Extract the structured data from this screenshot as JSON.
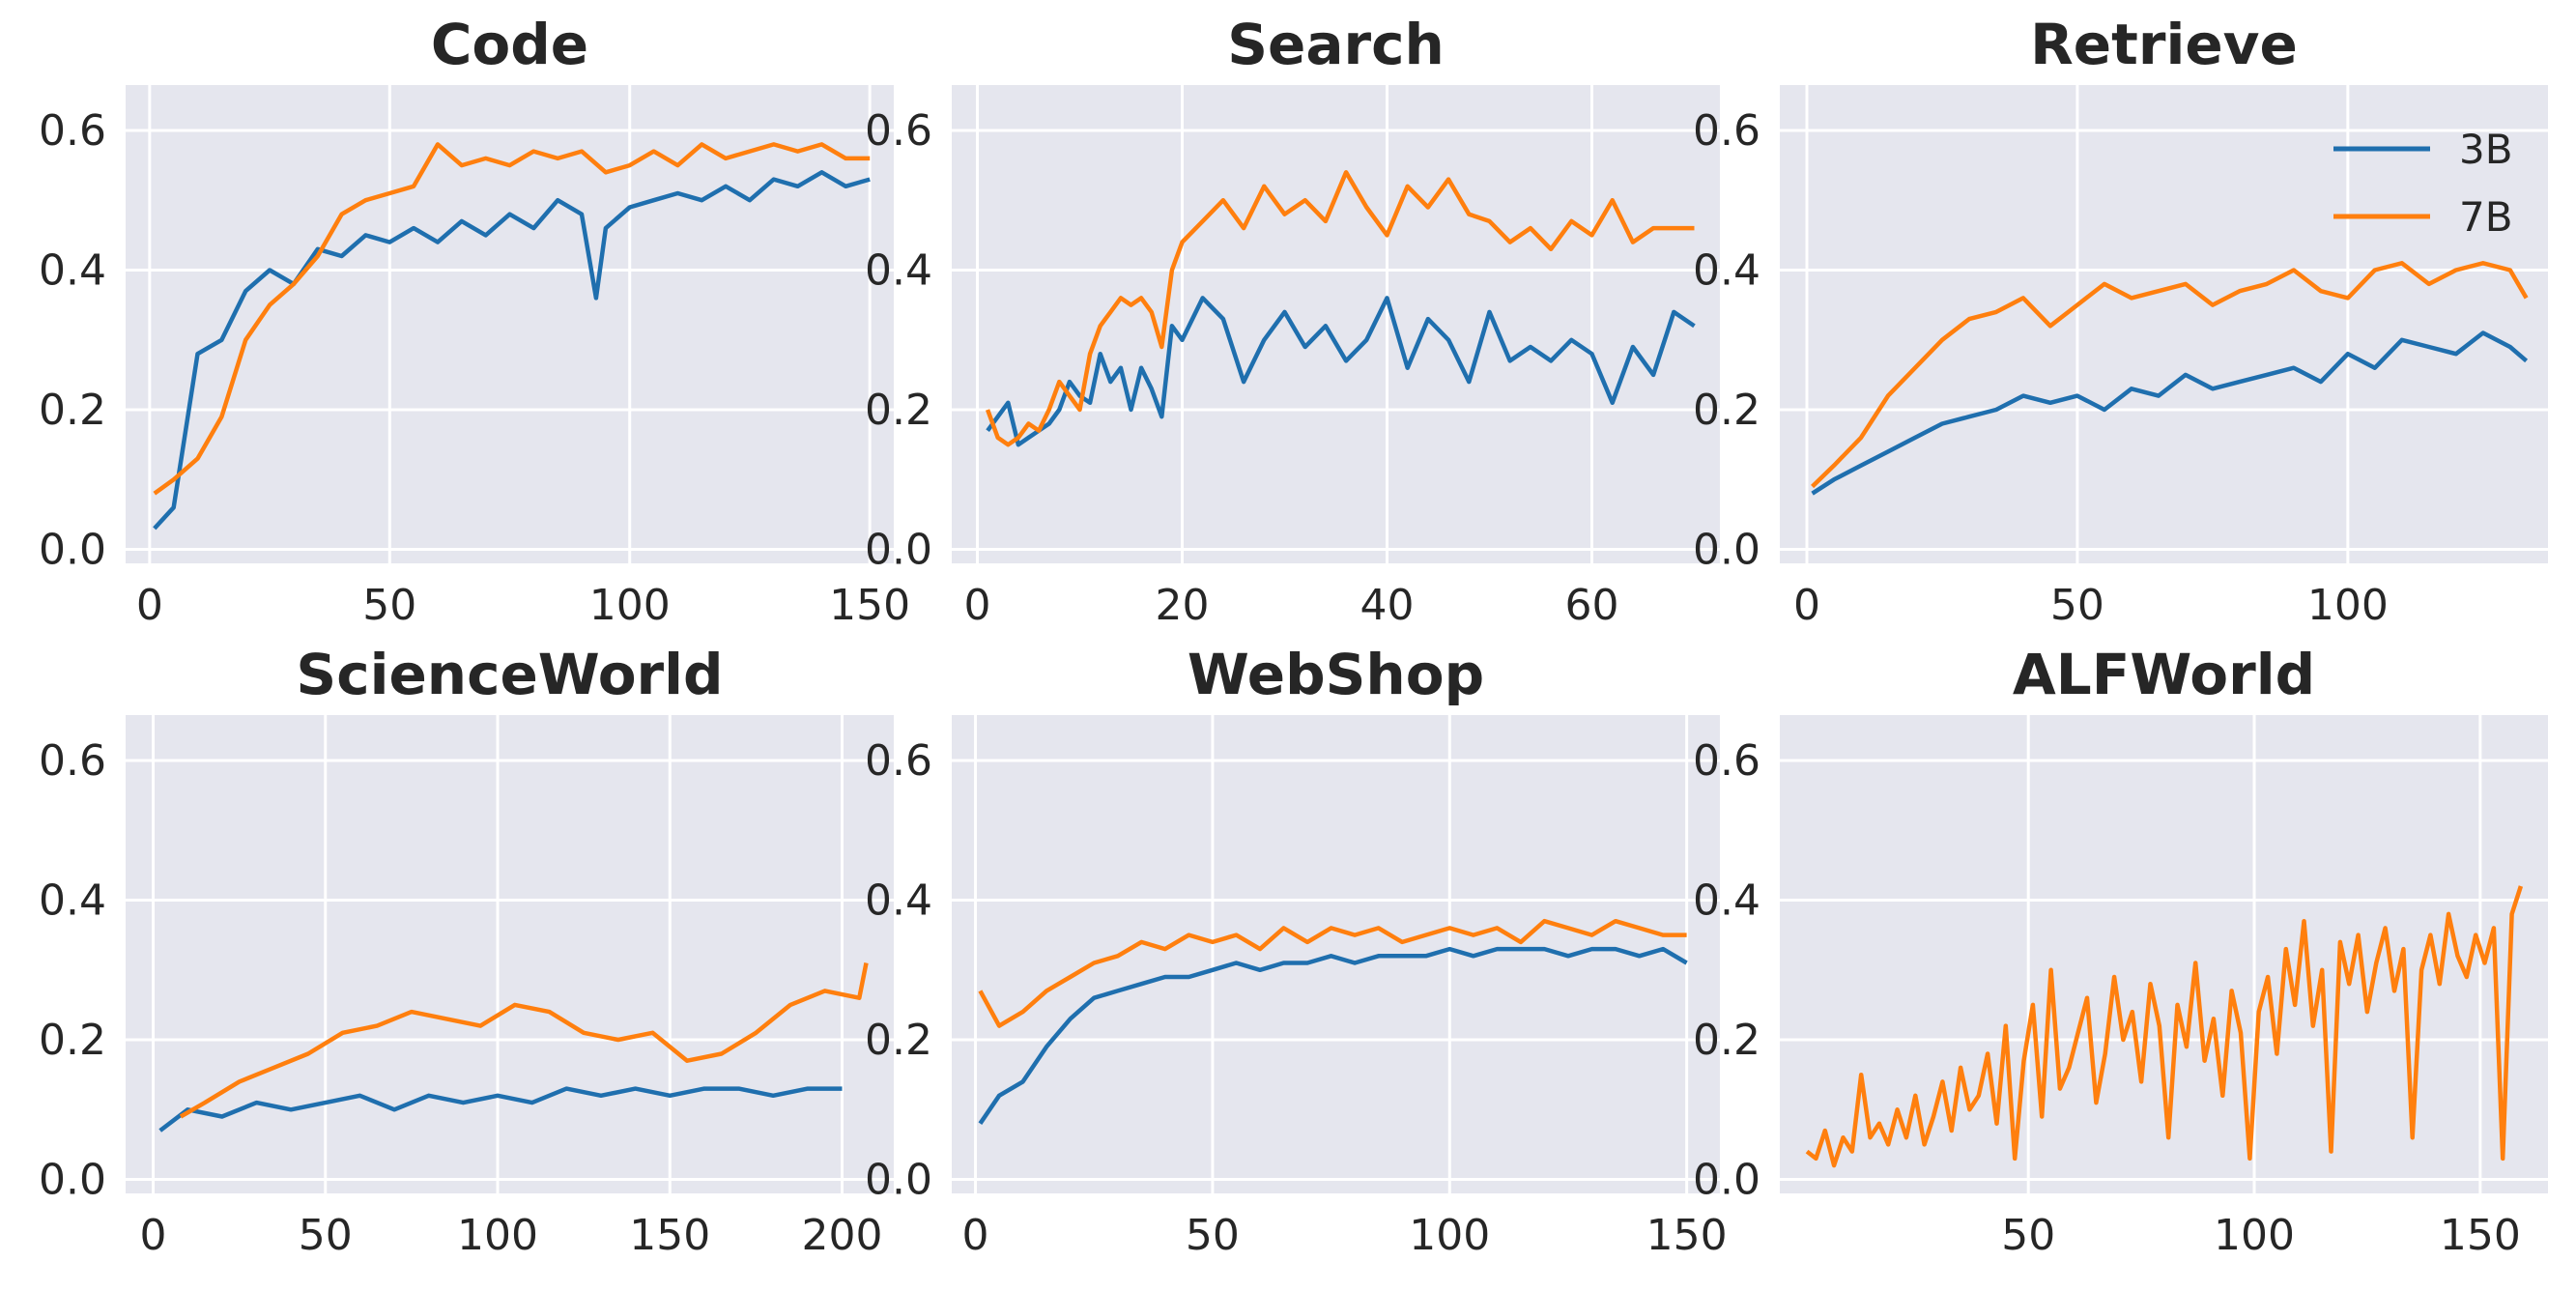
{
  "colors": {
    "series_3b": "#1f6fae",
    "series_7b": "#ff7f0e",
    "axes_bg": "#e5e6ee",
    "grid": "#ffffff"
  },
  "legend": {
    "placement": "top-right",
    "entries": [
      "3B",
      "7B"
    ]
  },
  "chart_data": [
    {
      "type": "line",
      "title": "Code",
      "grid": true,
      "xlim": [
        -5,
        155
      ],
      "ylim": [
        -0.02,
        0.665
      ],
      "xticks": [
        0,
        50,
        100,
        150
      ],
      "yticks": [
        0.0,
        0.2,
        0.4,
        0.6
      ],
      "series": [
        {
          "name": "3B",
          "x": [
            1,
            5,
            10,
            15,
            20,
            25,
            30,
            35,
            40,
            45,
            50,
            55,
            60,
            65,
            70,
            75,
            80,
            85,
            90,
            93,
            95,
            100,
            105,
            110,
            115,
            120,
            125,
            130,
            135,
            140,
            145,
            150
          ],
          "y": [
            0.03,
            0.06,
            0.28,
            0.3,
            0.37,
            0.4,
            0.38,
            0.43,
            0.42,
            0.45,
            0.44,
            0.46,
            0.44,
            0.47,
            0.45,
            0.48,
            0.46,
            0.5,
            0.48,
            0.36,
            0.46,
            0.49,
            0.5,
            0.51,
            0.5,
            0.52,
            0.5,
            0.53,
            0.52,
            0.54,
            0.52,
            0.53
          ]
        },
        {
          "name": "7B",
          "x": [
            1,
            5,
            10,
            15,
            20,
            25,
            30,
            35,
            40,
            45,
            50,
            55,
            60,
            65,
            70,
            75,
            80,
            85,
            90,
            95,
            100,
            105,
            110,
            115,
            120,
            125,
            130,
            135,
            140,
            145,
            150
          ],
          "y": [
            0.08,
            0.1,
            0.13,
            0.19,
            0.3,
            0.35,
            0.38,
            0.42,
            0.48,
            0.5,
            0.51,
            0.52,
            0.58,
            0.55,
            0.56,
            0.55,
            0.57,
            0.56,
            0.57,
            0.54,
            0.55,
            0.57,
            0.55,
            0.58,
            0.56,
            0.57,
            0.58,
            0.57,
            0.58,
            0.56,
            0.56
          ]
        }
      ]
    },
    {
      "type": "line",
      "title": "Search",
      "grid": true,
      "xlim": [
        -2.5,
        72.5
      ],
      "ylim": [
        -0.02,
        0.665
      ],
      "xticks": [
        0,
        20,
        40,
        60
      ],
      "yticks": [
        0.0,
        0.2,
        0.4,
        0.6
      ],
      "series": [
        {
          "name": "3B",
          "x": [
            1,
            2,
            3,
            4,
            5,
            6,
            7,
            8,
            9,
            10,
            11,
            12,
            13,
            14,
            15,
            16,
            17,
            18,
            19,
            20,
            22,
            24,
            26,
            28,
            30,
            32,
            34,
            36,
            38,
            40,
            42,
            44,
            46,
            48,
            50,
            52,
            54,
            56,
            58,
            60,
            62,
            64,
            66,
            68,
            70
          ],
          "y": [
            0.17,
            0.19,
            0.21,
            0.15,
            0.16,
            0.17,
            0.18,
            0.2,
            0.24,
            0.22,
            0.21,
            0.28,
            0.24,
            0.26,
            0.2,
            0.26,
            0.23,
            0.19,
            0.32,
            0.3,
            0.36,
            0.33,
            0.24,
            0.3,
            0.34,
            0.29,
            0.32,
            0.27,
            0.3,
            0.36,
            0.26,
            0.33,
            0.3,
            0.24,
            0.34,
            0.27,
            0.29,
            0.27,
            0.3,
            0.28,
            0.21,
            0.29,
            0.25,
            0.34,
            0.32
          ]
        },
        {
          "name": "7B",
          "x": [
            1,
            2,
            3,
            4,
            5,
            6,
            7,
            8,
            9,
            10,
            11,
            12,
            13,
            14,
            15,
            16,
            17,
            18,
            19,
            20,
            22,
            24,
            26,
            28,
            30,
            32,
            34,
            36,
            38,
            40,
            42,
            44,
            46,
            48,
            50,
            52,
            54,
            56,
            58,
            60,
            62,
            64,
            66,
            68,
            70
          ],
          "y": [
            0.2,
            0.16,
            0.15,
            0.16,
            0.18,
            0.17,
            0.2,
            0.24,
            0.22,
            0.2,
            0.28,
            0.32,
            0.34,
            0.36,
            0.35,
            0.36,
            0.34,
            0.29,
            0.4,
            0.44,
            0.47,
            0.5,
            0.46,
            0.52,
            0.48,
            0.5,
            0.47,
            0.54,
            0.49,
            0.45,
            0.52,
            0.49,
            0.53,
            0.48,
            0.47,
            0.44,
            0.46,
            0.43,
            0.47,
            0.45,
            0.5,
            0.44,
            0.46,
            0.46,
            0.46
          ]
        }
      ]
    },
    {
      "type": "line",
      "title": "Retrieve",
      "grid": true,
      "xlim": [
        -5,
        137
      ],
      "ylim": [
        -0.02,
        0.665
      ],
      "xticks": [
        0,
        50,
        100
      ],
      "yticks": [
        0.0,
        0.2,
        0.4,
        0.6
      ],
      "series": [
        {
          "name": "3B",
          "x": [
            1,
            5,
            10,
            15,
            20,
            25,
            30,
            35,
            40,
            45,
            50,
            55,
            60,
            65,
            70,
            75,
            80,
            85,
            90,
            95,
            100,
            105,
            110,
            115,
            120,
            125,
            130,
            133
          ],
          "y": [
            0.08,
            0.1,
            0.12,
            0.14,
            0.16,
            0.18,
            0.19,
            0.2,
            0.22,
            0.21,
            0.22,
            0.2,
            0.23,
            0.22,
            0.25,
            0.23,
            0.24,
            0.25,
            0.26,
            0.24,
            0.28,
            0.26,
            0.3,
            0.29,
            0.28,
            0.31,
            0.29,
            0.27
          ]
        },
        {
          "name": "7B",
          "x": [
            1,
            5,
            10,
            15,
            20,
            25,
            30,
            35,
            40,
            45,
            50,
            55,
            60,
            65,
            70,
            75,
            80,
            85,
            90,
            95,
            100,
            105,
            110,
            115,
            120,
            125,
            130,
            133
          ],
          "y": [
            0.09,
            0.12,
            0.16,
            0.22,
            0.26,
            0.3,
            0.33,
            0.34,
            0.36,
            0.32,
            0.35,
            0.38,
            0.36,
            0.37,
            0.38,
            0.35,
            0.37,
            0.38,
            0.4,
            0.37,
            0.36,
            0.4,
            0.41,
            0.38,
            0.4,
            0.41,
            0.4,
            0.36
          ]
        }
      ]
    },
    {
      "type": "line",
      "title": "ScienceWorld",
      "grid": true,
      "xlim": [
        -8,
        215
      ],
      "ylim": [
        -0.02,
        0.665
      ],
      "xticks": [
        0,
        50,
        100,
        150,
        200
      ],
      "yticks": [
        0.0,
        0.2,
        0.4,
        0.6
      ],
      "series": [
        {
          "name": "3B",
          "x": [
            2,
            10,
            20,
            30,
            40,
            50,
            60,
            70,
            80,
            90,
            100,
            110,
            120,
            130,
            140,
            150,
            160,
            170,
            180,
            190,
            200
          ],
          "y": [
            0.07,
            0.1,
            0.09,
            0.11,
            0.1,
            0.11,
            0.12,
            0.1,
            0.12,
            0.11,
            0.12,
            0.11,
            0.13,
            0.12,
            0.13,
            0.12,
            0.13,
            0.13,
            0.12,
            0.13,
            0.13
          ]
        },
        {
          "name": "7B",
          "x": [
            8,
            15,
            25,
            35,
            45,
            55,
            65,
            75,
            85,
            95,
            105,
            115,
            125,
            135,
            145,
            155,
            165,
            175,
            185,
            195,
            205,
            207
          ],
          "y": [
            0.09,
            0.11,
            0.14,
            0.16,
            0.18,
            0.21,
            0.22,
            0.24,
            0.23,
            0.22,
            0.25,
            0.24,
            0.21,
            0.2,
            0.21,
            0.17,
            0.18,
            0.21,
            0.25,
            0.27,
            0.26,
            0.31
          ]
        }
      ]
    },
    {
      "type": "line",
      "title": "WebShop",
      "grid": true,
      "xlim": [
        -5,
        157
      ],
      "ylim": [
        -0.02,
        0.665
      ],
      "xticks": [
        0,
        50,
        100,
        150
      ],
      "yticks": [
        0.0,
        0.2,
        0.4,
        0.6
      ],
      "series": [
        {
          "name": "3B",
          "x": [
            1,
            5,
            10,
            15,
            20,
            25,
            30,
            35,
            40,
            45,
            50,
            55,
            60,
            65,
            70,
            75,
            80,
            85,
            90,
            95,
            100,
            105,
            110,
            115,
            120,
            125,
            130,
            135,
            140,
            145,
            150
          ],
          "y": [
            0.08,
            0.12,
            0.14,
            0.19,
            0.23,
            0.26,
            0.27,
            0.28,
            0.29,
            0.29,
            0.3,
            0.31,
            0.3,
            0.31,
            0.31,
            0.32,
            0.31,
            0.32,
            0.32,
            0.32,
            0.33,
            0.32,
            0.33,
            0.33,
            0.33,
            0.32,
            0.33,
            0.33,
            0.32,
            0.33,
            0.31
          ]
        },
        {
          "name": "7B",
          "x": [
            1,
            5,
            10,
            15,
            20,
            25,
            30,
            35,
            40,
            45,
            50,
            55,
            60,
            65,
            70,
            75,
            80,
            85,
            90,
            95,
            100,
            105,
            110,
            115,
            120,
            125,
            130,
            135,
            140,
            145,
            150
          ],
          "y": [
            0.27,
            0.22,
            0.24,
            0.27,
            0.29,
            0.31,
            0.32,
            0.34,
            0.33,
            0.35,
            0.34,
            0.35,
            0.33,
            0.36,
            0.34,
            0.36,
            0.35,
            0.36,
            0.34,
            0.35,
            0.36,
            0.35,
            0.36,
            0.34,
            0.37,
            0.36,
            0.35,
            0.37,
            0.36,
            0.35,
            0.35
          ]
        }
      ]
    },
    {
      "type": "line",
      "title": "ALFWorld",
      "grid": true,
      "xlim": [
        -5,
        165
      ],
      "ylim": [
        -0.02,
        0.665
      ],
      "xticks": [
        50,
        100,
        150
      ],
      "yticks": [
        0.0,
        0.2,
        0.4,
        0.6
      ],
      "series": [
        {
          "name": "7B",
          "x": [
            1,
            3,
            5,
            7,
            9,
            11,
            13,
            15,
            17,
            19,
            21,
            23,
            25,
            27,
            29,
            31,
            33,
            35,
            37,
            39,
            41,
            43,
            45,
            47,
            49,
            51,
            53,
            55,
            57,
            59,
            61,
            63,
            65,
            67,
            69,
            71,
            73,
            75,
            77,
            79,
            81,
            83,
            85,
            87,
            89,
            91,
            93,
            95,
            97,
            99,
            101,
            103,
            105,
            107,
            109,
            111,
            113,
            115,
            117,
            119,
            121,
            123,
            125,
            127,
            129,
            131,
            133,
            135,
            137,
            139,
            141,
            143,
            145,
            147,
            149,
            151,
            153,
            155,
            157,
            159
          ],
          "y": [
            0.04,
            0.03,
            0.07,
            0.02,
            0.06,
            0.04,
            0.15,
            0.06,
            0.08,
            0.05,
            0.1,
            0.06,
            0.12,
            0.05,
            0.09,
            0.14,
            0.07,
            0.16,
            0.1,
            0.12,
            0.18,
            0.08,
            0.22,
            0.03,
            0.17,
            0.25,
            0.09,
            0.3,
            0.13,
            0.16,
            0.21,
            0.26,
            0.11,
            0.18,
            0.29,
            0.2,
            0.24,
            0.14,
            0.28,
            0.22,
            0.06,
            0.25,
            0.19,
            0.31,
            0.17,
            0.23,
            0.12,
            0.27,
            0.21,
            0.03,
            0.24,
            0.29,
            0.18,
            0.33,
            0.25,
            0.37,
            0.22,
            0.3,
            0.04,
            0.34,
            0.28,
            0.35,
            0.24,
            0.31,
            0.36,
            0.27,
            0.33,
            0.06,
            0.3,
            0.35,
            0.28,
            0.38,
            0.32,
            0.29,
            0.35,
            0.31,
            0.36,
            0.03,
            0.38,
            0.42
          ]
        }
      ]
    }
  ]
}
